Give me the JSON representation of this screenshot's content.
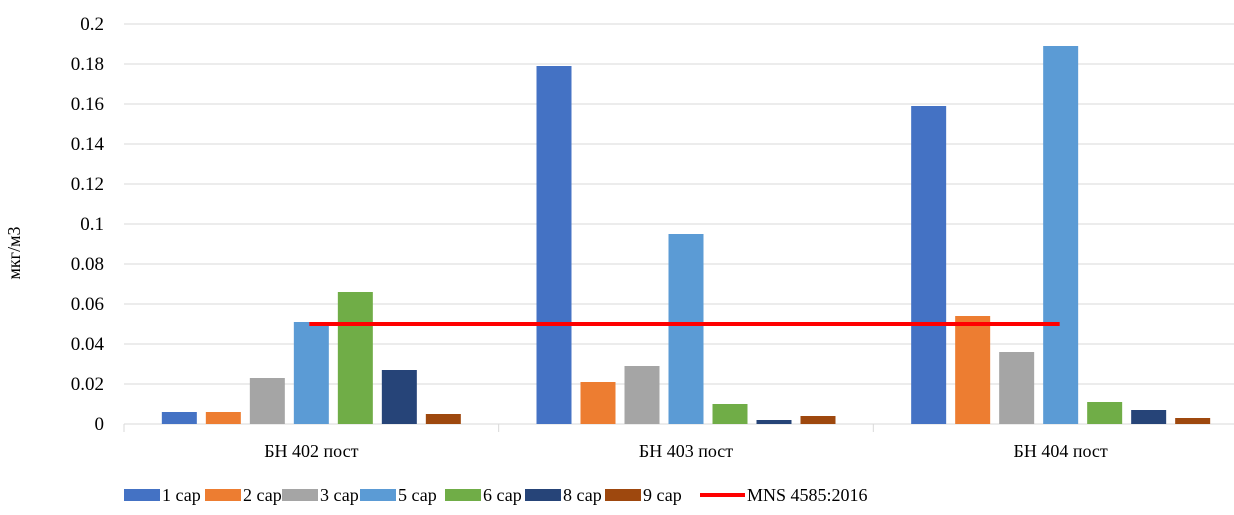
{
  "chart_data": {
    "type": "bar",
    "title": "",
    "xlabel": "",
    "ylabel": "мкг/м3",
    "ylim": [
      0,
      0.2
    ],
    "y_ticks": [
      "0",
      "0.02",
      "0.04",
      "0.06",
      "0.08",
      "0.1",
      "0.12",
      "0.14",
      "0.16",
      "0.18",
      "0.2"
    ],
    "y_tick_values": [
      0,
      0.02,
      0.04,
      0.06,
      0.08,
      0.1,
      0.12,
      0.14,
      0.16,
      0.18,
      0.2
    ],
    "grid": true,
    "legend_placement": "bottom",
    "categories": [
      "БН 402 пост",
      "БН 403 пост",
      "БН 404 пост"
    ],
    "series": [
      {
        "name": "1 сар",
        "color": "#4472C4",
        "values": [
          0.006,
          0.179,
          0.159
        ]
      },
      {
        "name": "2 сар",
        "color": "#ED7D31",
        "values": [
          0.006,
          0.021,
          0.054
        ]
      },
      {
        "name": "3 сар",
        "color": "#A5A5A5",
        "values": [
          0.023,
          0.029,
          0.036
        ]
      },
      {
        "name": "5 сар",
        "color": "#5B9BD5",
        "values": [
          0.051,
          0.095,
          0.189
        ]
      },
      {
        "name": "6 сар",
        "color": "#70AD47",
        "values": [
          0.066,
          0.01,
          0.011
        ]
      },
      {
        "name": "8 сар",
        "color": "#264478",
        "values": [
          0.027,
          0.002,
          0.007
        ]
      },
      {
        "name": "9 сар",
        "color": "#9E480E",
        "values": [
          0.005,
          0.004,
          0.003
        ]
      }
    ],
    "reference_line": {
      "name": "MNS 4585:2016",
      "value": 0.05,
      "color": "#FF0000"
    }
  }
}
